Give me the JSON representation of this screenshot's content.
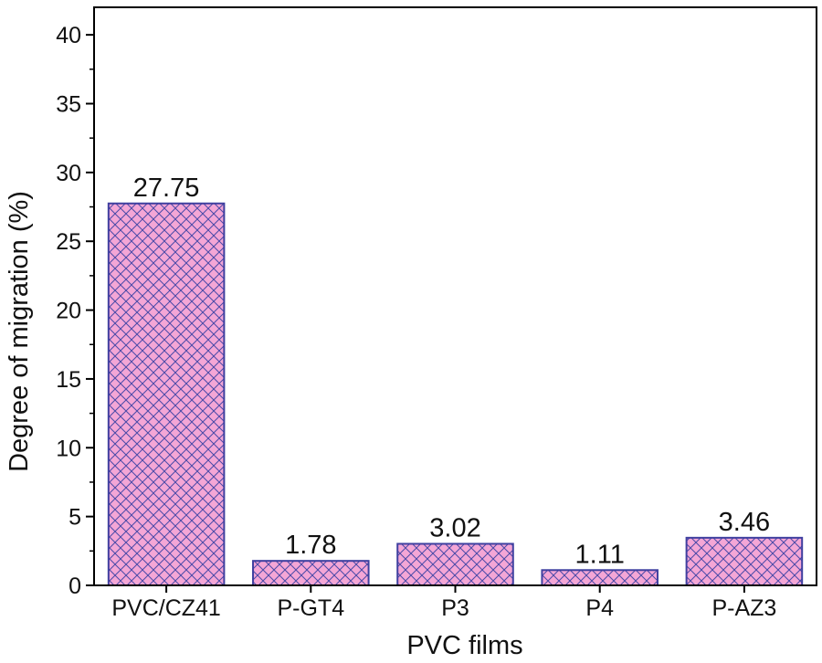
{
  "chart_data": {
    "type": "bar",
    "categories": [
      "PVC/CZ41",
      "P-GT4",
      "P3",
      "P4",
      "P-AZ3"
    ],
    "values": [
      27.75,
      1.78,
      3.02,
      1.11,
      3.46
    ],
    "data_labels": [
      "27.75",
      "1.78",
      "3.02",
      "1.11",
      "3.46"
    ],
    "xlabel": "PVC films",
    "ylabel": "Degree of migration (%)",
    "ylim": [
      0,
      42
    ],
    "yticks": [
      0,
      5,
      10,
      15,
      20,
      25,
      30,
      35,
      40
    ],
    "ytick_labels": [
      "0",
      "5",
      "10",
      "15",
      "20",
      "25",
      "30",
      "35",
      "40"
    ],
    "minor_ytick_step": 2.5,
    "grid": false,
    "bar_fill": "#f4a6d6",
    "bar_pattern": "crosshatch",
    "hatch_color": "#4a4aa8",
    "bar_edge": "#4040a0",
    "axis_color": "#000000"
  }
}
